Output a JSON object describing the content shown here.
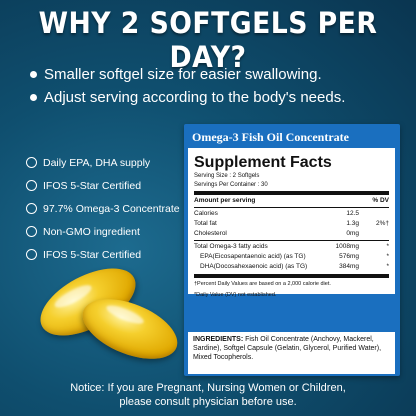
{
  "headline": "WHY 2 SOFTGELS PER DAY?",
  "bullets": [
    "Smaller softgel size for easier swallowing.",
    "Adjust serving according to the body's needs."
  ],
  "checklist": [
    "Daily EPA, DHA supply",
    "IFOS 5-Star Certified",
    "97.7% Omega-3 Concentrate",
    "Non-GMO ingredient",
    "IFOS 5-Star Certified"
  ],
  "label": {
    "title": "Omega-3 Fish Oil Concentrate",
    "facts_title": "Supplement Facts",
    "serving_size": "Serving Size : 2 Softgels",
    "servings_per_container": "Servings Per Container : 30",
    "header_left": "Amount per serving",
    "header_right": "% DV",
    "rows": [
      {
        "name": "Calories",
        "amount": "12.5",
        "dv": ""
      },
      {
        "name": "Total fat",
        "amount": "1.3g",
        "dv": "2%†"
      },
      {
        "name": "Cholesterol",
        "amount": "0mg",
        "dv": ""
      },
      {
        "name": "Total Omega-3 fatty acids",
        "amount": "1008mg",
        "dv": "*"
      },
      {
        "name": "EPA(Eicosapentaenoic acid) (as TG)",
        "amount": "576mg",
        "dv": "*"
      },
      {
        "name": "DHA(Docosahexaenoic acid) (as TG)",
        "amount": "384mg",
        "dv": "*"
      }
    ],
    "footnote1": "†Percent Daily Values are based on a 2,000 calorie diet.",
    "footnote2": "*Daily Value (DV) not established.",
    "ingredients_label": "INGREDIENTS:",
    "ingredients_text": " Fish Oil Concentrate (Anchovy, Mackerel, Sardine), Softgel Capsule (Gelatin, Glycerol, Purified Water), Mixed Tocopherols."
  },
  "notice": {
    "line1": "Notice: If you are Pregnant, Nursing Women or Children,",
    "line2": "please consult physician before use."
  },
  "colors": {
    "background": "#0f4f6f",
    "label_blue": "#1a6fbf",
    "softgel": "#f5cf2d"
  }
}
